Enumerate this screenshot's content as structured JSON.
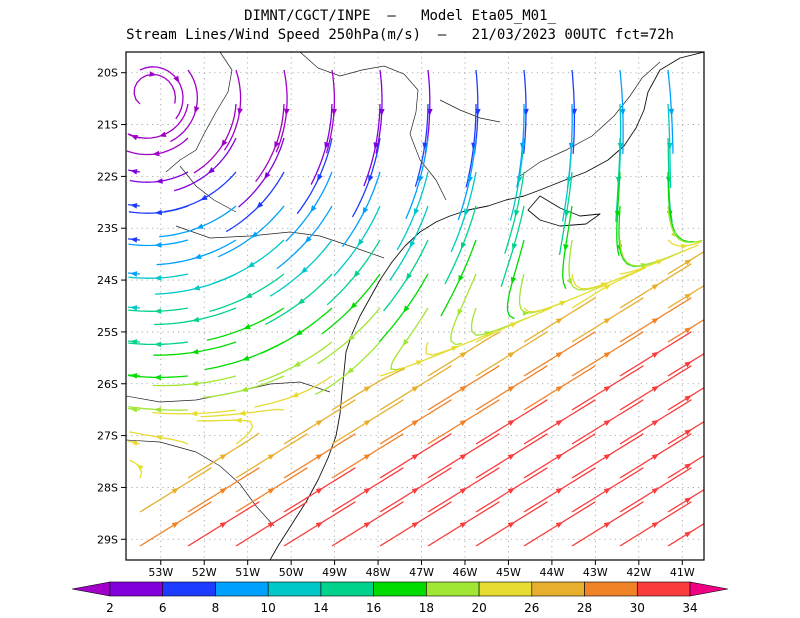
{
  "header": {
    "title_line1": "DIMNT/CGCT/INPE  –   Model Eta05_M01_",
    "title_line2": "Stream Lines/Wind Speed 250hPa(m/s)  –   21/03/2023 00UTC fct=72h"
  },
  "map": {
    "lat_labels": [
      "20S",
      "21S",
      "22S",
      "23S",
      "24S",
      "25S",
      "26S",
      "27S",
      "28S",
      "29S"
    ],
    "lon_labels": [
      "53W",
      "52W",
      "51W",
      "50W",
      "49W",
      "48W",
      "47W",
      "46W",
      "45W",
      "44W",
      "43W",
      "42W",
      "41W"
    ],
    "lat_values": [
      -20,
      -21,
      -22,
      -23,
      -24,
      -25,
      -26,
      -27,
      -28,
      -29
    ],
    "lon_values": [
      -53,
      -52,
      -51,
      -50,
      -49,
      -48,
      -47,
      -46,
      -45,
      -44,
      -43,
      -42,
      -41
    ],
    "extent": {
      "lon_min": -53.8,
      "lon_max": -40.5,
      "lat_min": -29.4,
      "lat_max": -19.6
    },
    "grid": "dotted"
  },
  "colorbar": {
    "labels": [
      "2",
      "6",
      "8",
      "10",
      "14",
      "16",
      "18",
      "20",
      "26",
      "28",
      "30",
      "34"
    ],
    "colors": [
      "#a000c8",
      "#8200dc",
      "#1e3cff",
      "#00a0ff",
      "#00c8c8",
      "#00d28c",
      "#00dc00",
      "#a0e632",
      "#e6dc32",
      "#e6af2d",
      "#f08228",
      "#fa3c3c",
      "#f00082"
    ]
  }
}
